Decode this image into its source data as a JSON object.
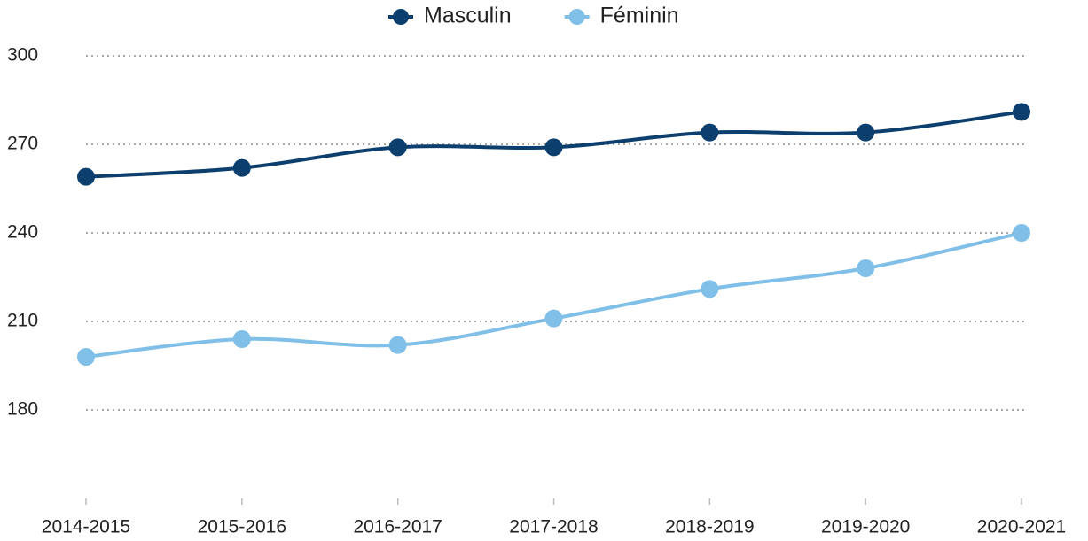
{
  "chart_data": {
    "type": "line",
    "categories": [
      "2014-2015",
      "2015-2016",
      "2016-2017",
      "2017-2018",
      "2018-2019",
      "2019-2020",
      "2020-2021"
    ],
    "series": [
      {
        "name": "Masculin",
        "color": "#0d3f6e",
        "values": [
          259,
          262,
          269,
          269,
          274,
          274,
          281
        ]
      },
      {
        "name": "Féminin",
        "color": "#7fbfe8",
        "values": [
          198,
          204,
          202,
          211,
          221,
          228,
          240
        ]
      }
    ],
    "ylim": [
      150,
      300
    ],
    "yticks": [
      180,
      210,
      240,
      270,
      300
    ],
    "grid": true,
    "legend": "top"
  }
}
